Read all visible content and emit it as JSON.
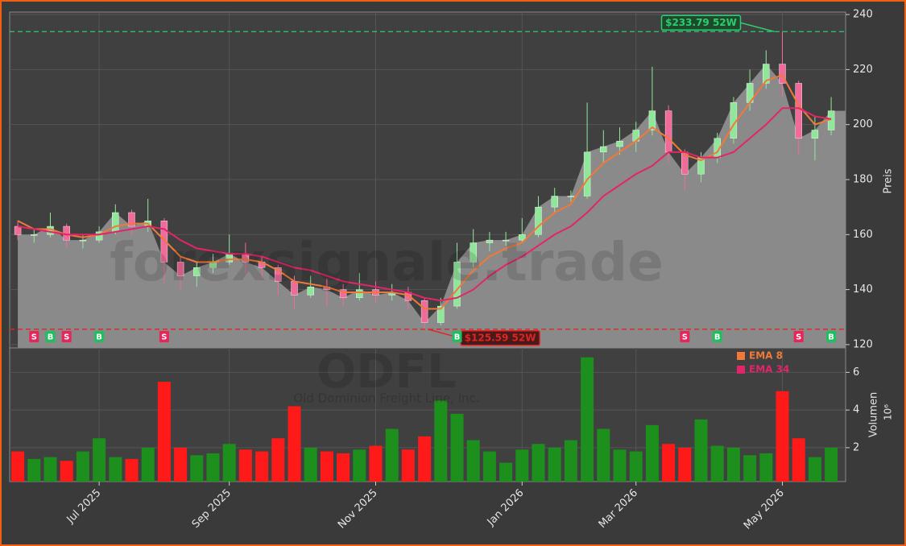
{
  "chart_data": {
    "type": "candlestick",
    "title": "ODFL",
    "subtitle": "Old Dominion Freight Line, Inc.",
    "watermark": "forexsignale.trade",
    "categories": [
      null,
      null,
      null,
      null,
      null,
      "Jul 2025",
      null,
      null,
      null,
      null,
      null,
      null,
      null,
      "Sep 2025",
      null,
      null,
      null,
      null,
      null,
      null,
      null,
      null,
      "Nov 2025",
      null,
      null,
      null,
      null,
      null,
      null,
      null,
      null,
      "Jan 2026",
      null,
      null,
      null,
      null,
      null,
      null,
      "Mar 2026",
      null,
      null,
      null,
      null,
      null,
      null,
      null,
      null,
      "May 2026",
      null,
      null,
      null
    ],
    "open": [
      163,
      160,
      160,
      163,
      158,
      158,
      161,
      168,
      163,
      165,
      150,
      145,
      148,
      150,
      153,
      150,
      148,
      143,
      138,
      141,
      140,
      137,
      140,
      138,
      139,
      136,
      128,
      134,
      150,
      157,
      158,
      158,
      160,
      170,
      174,
      174,
      190,
      192,
      194,
      198,
      205,
      190,
      182,
      188,
      195,
      208,
      215,
      222,
      215,
      195,
      198
    ],
    "high": [
      165,
      162,
      168,
      164,
      160,
      163,
      171,
      169,
      173,
      166,
      152,
      150,
      153,
      160,
      157,
      152,
      149,
      145,
      145,
      144,
      142,
      146,
      143,
      142,
      141,
      137,
      137,
      157,
      162,
      161,
      161,
      166,
      174,
      177,
      176,
      208,
      198,
      199,
      201,
      221,
      207,
      191,
      190,
      197,
      210,
      220,
      227,
      233.79,
      216,
      203,
      210
    ],
    "low": [
      158,
      157,
      159,
      155,
      155,
      157,
      160,
      160,
      161,
      142,
      140,
      141,
      146,
      149,
      146,
      144,
      138,
      133,
      137,
      134,
      134,
      136,
      135,
      136,
      133,
      125.59,
      127,
      133,
      148,
      154,
      156,
      157,
      159,
      168,
      172,
      173,
      186,
      189,
      190,
      196,
      186,
      176,
      179,
      186,
      193,
      205,
      213,
      210,
      189,
      187,
      196
    ],
    "close": [
      160,
      160,
      163,
      158,
      158,
      161,
      168,
      163,
      165,
      150,
      145,
      148,
      150,
      153,
      150,
      148,
      143,
      138,
      141,
      140,
      137,
      140,
      138,
      139,
      136,
      128,
      134,
      150,
      157,
      158,
      158,
      160,
      170,
      174,
      174,
      190,
      192,
      194,
      198,
      205,
      190,
      182,
      188,
      195,
      208,
      215,
      222,
      215,
      195,
      198,
      205
    ],
    "up_color": "#8fe89a",
    "down_color": "#f06a9a",
    "area_color": "#8a8a8a",
    "series": [
      {
        "name": "EMA 8",
        "color": "#f0793a",
        "values": [
          165,
          162,
          162,
          160,
          159,
          160,
          163,
          164,
          164,
          158,
          152,
          150,
          150,
          151,
          151,
          150,
          147,
          143,
          142,
          141,
          139,
          139,
          139,
          139,
          138,
          133,
          133,
          140,
          147,
          152,
          155,
          157,
          163,
          168,
          171,
          180,
          186,
          190,
          194,
          199,
          195,
          189,
          187,
          190,
          200,
          208,
          216,
          218,
          207,
          200,
          202
        ]
      },
      {
        "name": "EMA 34",
        "color": "#e3246a",
        "values": [
          163,
          162,
          161,
          160,
          160,
          160,
          161,
          162,
          163,
          162,
          158,
          155,
          154,
          153,
          153,
          152,
          150,
          148,
          147,
          145,
          143,
          142,
          141,
          140,
          139,
          137,
          136,
          137,
          140,
          145,
          149,
          152,
          156,
          160,
          163,
          168,
          174,
          178,
          182,
          185,
          190,
          190,
          188,
          188,
          190,
          195,
          200,
          206,
          206,
          203,
          202
        ]
      }
    ],
    "signals": [
      null,
      "S",
      "B",
      "S",
      null,
      "B",
      null,
      null,
      null,
      "S",
      null,
      null,
      null,
      null,
      null,
      null,
      null,
      null,
      null,
      null,
      null,
      null,
      null,
      null,
      null,
      null,
      null,
      "B",
      null,
      null,
      null,
      null,
      null,
      null,
      null,
      null,
      null,
      null,
      null,
      null,
      null,
      "S",
      null,
      "B",
      null,
      null,
      null,
      null,
      "S",
      null,
      "B"
    ],
    "buy_color": "#1fbf5f",
    "sell_color": "#e8245a",
    "ylim": [
      118.8,
      240.9
    ],
    "yticks": [
      120,
      140,
      160,
      180,
      200,
      220,
      240
    ],
    "ylabel": "Preis",
    "grid": true,
    "annotations": [
      {
        "value": 233.79,
        "label": "$233.79 52W",
        "color": "#2ecc71"
      },
      {
        "value": 125.59,
        "label": "$125.59 52W",
        "color": "#e02424"
      }
    ],
    "volume": {
      "values": [
        1.8,
        1.4,
        1.5,
        1.3,
        1.8,
        2.5,
        1.5,
        1.4,
        2.0,
        5.5,
        2.0,
        1.6,
        1.7,
        2.2,
        1.9,
        1.8,
        2.5,
        4.2,
        2.0,
        1.8,
        1.7,
        1.9,
        2.1,
        3.0,
        1.9,
        2.6,
        4.5,
        3.8,
        2.4,
        1.8,
        1.2,
        1.9,
        2.2,
        2.0,
        2.4,
        6.8,
        3.0,
        1.9,
        1.8,
        3.2,
        2.2,
        2.0,
        3.5,
        2.1,
        2.0,
        1.6,
        1.7,
        5.0,
        2.5,
        1.5,
        2.0
      ],
      "ylim": [
        0.2,
        7.3
      ],
      "yticks": [
        2,
        4,
        6
      ],
      "ylabel": "Volumen",
      "unit": "10⁶",
      "up_color": "#1c8f1c",
      "down_color": "#ff1a1a"
    }
  }
}
